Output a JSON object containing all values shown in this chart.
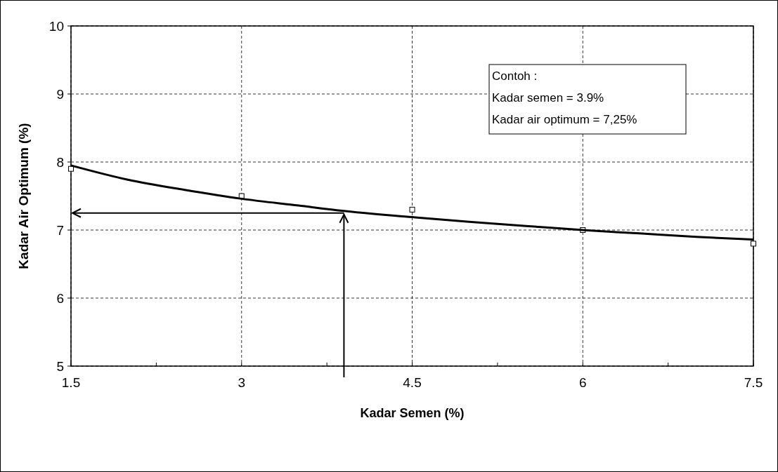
{
  "chart_data": {
    "type": "scatter",
    "xlabel": "Kadar Semen (%)",
    "ylabel": "Kadar Air Optimum (%)",
    "xlim": [
      1.5,
      7.5
    ],
    "xticks": [
      1.5,
      {
        "value": 2.25,
        "label": null
      },
      3,
      {
        "value": 3.75,
        "label": null
      },
      4.5,
      {
        "value": 5.25,
        "label": null
      },
      6,
      {
        "value": 6.75,
        "label": null
      },
      7.5
    ],
    "ylim": [
      5,
      10
    ],
    "yticks": [
      5,
      6,
      7,
      8,
      9,
      10
    ],
    "grid": true,
    "series": [
      {
        "color": "#000000",
        "marker": "square",
        "x": [
          1.5,
          3,
          4.5,
          6,
          7.5
        ],
        "values": [
          7.9,
          7.5,
          7.3,
          7.0,
          6.8
        ]
      },
      {
        "type": "line",
        "color": "#000000",
        "marker": "none",
        "x": [
          1.5,
          2,
          2.5,
          3,
          3.5,
          3.9,
          4.5,
          5,
          5.5,
          6,
          6.5,
          7,
          7.5
        ],
        "values": [
          7.95,
          7.74,
          7.59,
          7.46,
          7.36,
          7.28,
          7.19,
          7.12,
          7.06,
          7.0,
          6.95,
          6.9,
          6.86
        ]
      }
    ],
    "ref_lines": [
      {
        "axis": "x",
        "value": 3.9,
        "color": "#000000"
      },
      {
        "axis": "y",
        "value": 7.25,
        "color": "#000000"
      }
    ],
    "annotations": [
      "Contoh :\nKadar semen = 3.9%\nKadar air optimum = 7,25%"
    ]
  }
}
